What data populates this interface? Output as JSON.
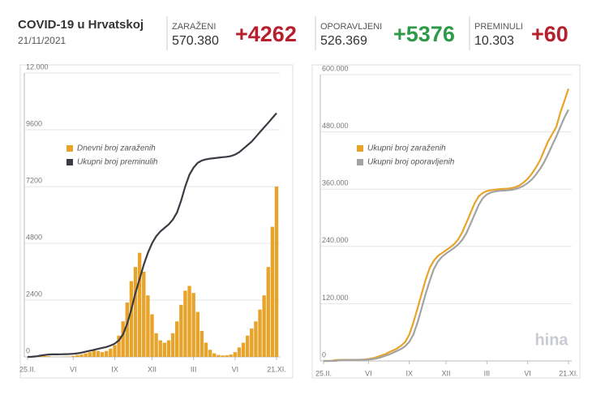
{
  "header": {
    "title": "COVID-19 u Hrvatskoj",
    "date": "21/11/2021"
  },
  "stats": [
    {
      "label": "ZARAŽENI",
      "total": "570.380",
      "change": "+4262",
      "color": "#b5202e"
    },
    {
      "label": "OPORAVLJENI",
      "total": "526.369",
      "change": "+5376",
      "color": "#2e9a47"
    },
    {
      "label": "PREMINULI",
      "total": "10.303",
      "change": "+60",
      "color": "#b5202e"
    }
  ],
  "watermark": "hina",
  "chart_data": [
    {
      "type": "bar",
      "categories": [
        "25.II.",
        null,
        null,
        null,
        null,
        null,
        null,
        null,
        null,
        null,
        null,
        "VI",
        null,
        null,
        null,
        null,
        null,
        null,
        null,
        null,
        null,
        "IX",
        null,
        null,
        null,
        null,
        null,
        null,
        null,
        null,
        "XII",
        null,
        null,
        null,
        null,
        null,
        null,
        null,
        null,
        null,
        "III",
        null,
        null,
        null,
        null,
        null,
        null,
        null,
        null,
        null,
        "VI",
        null,
        null,
        null,
        null,
        null,
        null,
        null,
        null,
        null,
        "21.XI."
      ],
      "ylim": [
        0,
        12000
      ],
      "yticks": [
        0,
        2400,
        4800,
        7200,
        9600,
        {
          "value": 12000,
          "label": "12.000"
        }
      ],
      "grid": true,
      "series": [
        {
          "name": "Dnevni broj zaraženih",
          "type": "bar",
          "color": "#e8a42a",
          "values": [
            0,
            10,
            30,
            60,
            60,
            30,
            10,
            5,
            5,
            10,
            20,
            40,
            80,
            100,
            150,
            200,
            300,
            250,
            200,
            250,
            350,
            500,
            900,
            1500,
            2300,
            3200,
            3800,
            4400,
            3600,
            2600,
            1800,
            1000,
            700,
            600,
            700,
            1000,
            1500,
            2200,
            2800,
            3000,
            2700,
            1900,
            1100,
            600,
            300,
            150,
            80,
            60,
            70,
            100,
            200,
            400,
            600,
            900,
            1200,
            1500,
            2000,
            2600,
            3800,
            5500,
            7200
          ]
        },
        {
          "name": "Ukupni broj preminulih",
          "type": "line",
          "color": "#3b3b45",
          "values": [
            1,
            5,
            20,
            50,
            80,
            100,
            105,
            107,
            110,
            115,
            120,
            130,
            150,
            180,
            220,
            260,
            300,
            340,
            380,
            420,
            480,
            560,
            700,
            950,
            1400,
            2000,
            2700,
            3300,
            3900,
            4400,
            4800,
            5100,
            5300,
            5450,
            5600,
            5800,
            6100,
            6600,
            7200,
            7700,
            8000,
            8200,
            8300,
            8350,
            8380,
            8400,
            8420,
            8440,
            8460,
            8490,
            8550,
            8650,
            8800,
            8950,
            9100,
            9300,
            9500,
            9700,
            9900,
            10100,
            10303
          ]
        }
      ]
    },
    {
      "type": "line",
      "categories": [
        "25.II.",
        null,
        null,
        null,
        null,
        null,
        null,
        null,
        null,
        null,
        null,
        "VI",
        null,
        null,
        null,
        null,
        null,
        null,
        null,
        null,
        null,
        "IX",
        null,
        null,
        null,
        null,
        null,
        null,
        null,
        null,
        "XII",
        null,
        null,
        null,
        null,
        null,
        null,
        null,
        null,
        null,
        "III",
        null,
        null,
        null,
        null,
        null,
        null,
        null,
        null,
        null,
        "VI",
        null,
        null,
        null,
        null,
        null,
        null,
        null,
        null,
        null,
        "21.XI."
      ],
      "ylim": [
        0,
        600000
      ],
      "yticks": [
        0,
        {
          "value": 120000,
          "label": "120.000"
        },
        {
          "value": 240000,
          "label": "240.000"
        },
        {
          "value": 360000,
          "label": "360.000"
        },
        {
          "value": 480000,
          "label": "480.000"
        },
        {
          "value": 600000,
          "label": "600.000"
        }
      ],
      "grid": true,
      "series": [
        {
          "name": "Ukupni broj zaraženih",
          "type": "line",
          "color": "#e8a42a",
          "values": [
            0,
            10,
            100,
            2000,
            2200,
            2250,
            2260,
            2300,
            2400,
            2500,
            3000,
            4000,
            5500,
            8000,
            11000,
            14000,
            18000,
            22000,
            26000,
            32000,
            40000,
            55000,
            80000,
            110000,
            140000,
            170000,
            195000,
            210000,
            220000,
            226000,
            232000,
            238000,
            245000,
            255000,
            270000,
            290000,
            310000,
            330000,
            345000,
            352000,
            356000,
            358000,
            359000,
            360000,
            360500,
            361000,
            362000,
            364000,
            368000,
            374000,
            382000,
            392000,
            405000,
            420000,
            440000,
            460000,
            475000,
            490000,
            520000,
            545000,
            570380
          ]
        },
        {
          "name": "Ukupni broj oporavljenih",
          "type": "line",
          "color": "#a3a3a3",
          "values": [
            0,
            0,
            0,
            100,
            1500,
            2100,
            2200,
            2250,
            2300,
            2350,
            2450,
            2900,
            3800,
            5200,
            7500,
            10500,
            13500,
            17000,
            21000,
            25000,
            31000,
            40000,
            55000,
            80000,
            110000,
            140000,
            168000,
            192000,
            208000,
            218000,
            225000,
            231000,
            237000,
            244000,
            254000,
            268000,
            287000,
            307000,
            327000,
            341000,
            349000,
            353000,
            355000,
            356500,
            357000,
            357500,
            358500,
            360000,
            363000,
            367000,
            373000,
            380000,
            390000,
            402000,
            416000,
            433000,
            452000,
            470000,
            490000,
            510000,
            526369
          ]
        }
      ]
    }
  ]
}
